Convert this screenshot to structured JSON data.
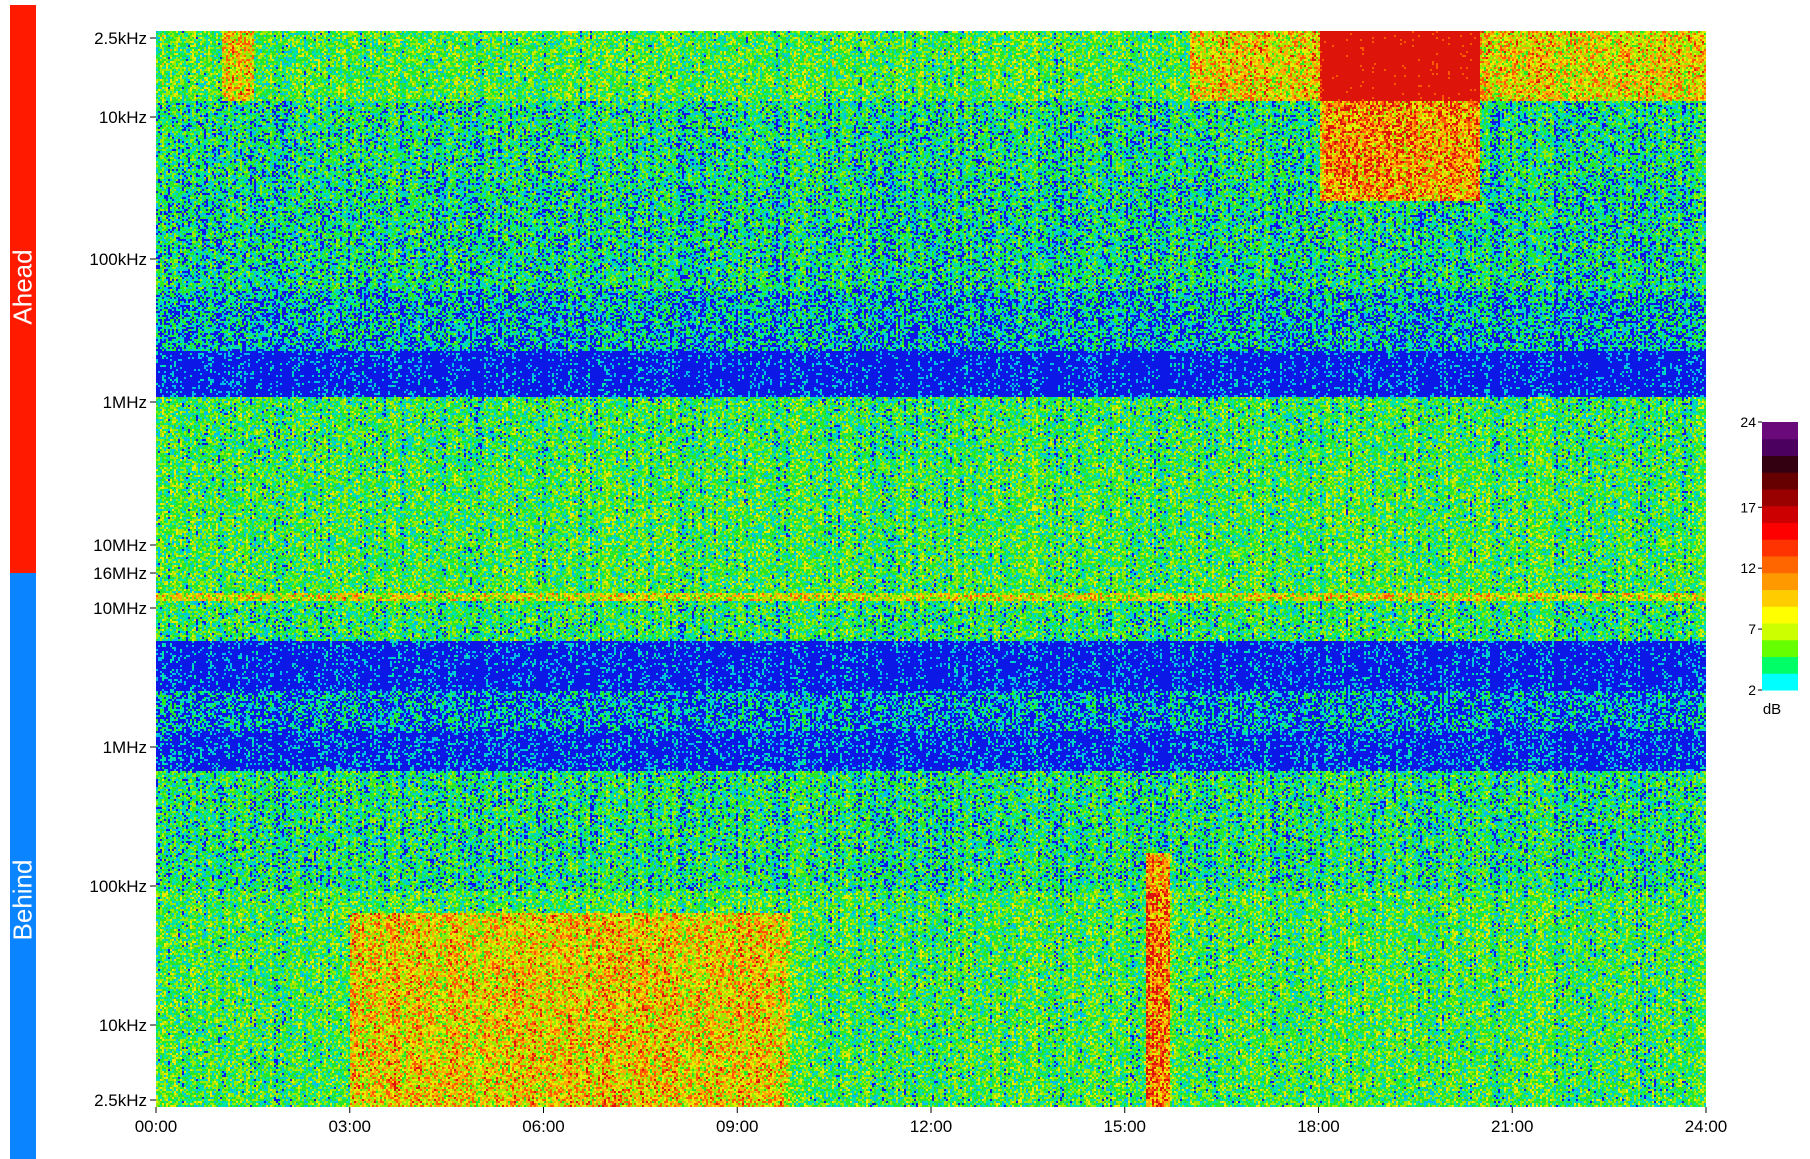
{
  "chart_data": {
    "type": "heatmap",
    "sections": [
      {
        "name": "Ahead",
        "color": "#ff1a00"
      },
      {
        "name": "Behind",
        "color": "#0a84ff"
      }
    ],
    "y_ticks_ahead": [
      "2.5kHz",
      "10kHz",
      "100kHz",
      "1MHz",
      "10MHz",
      "16MHz"
    ],
    "y_ticks_behind": [
      "10MHz",
      "1MHz",
      "100kHz",
      "10kHz",
      "2.5kHz"
    ],
    "x_ticks": [
      "00:00",
      "03:00",
      "06:00",
      "09:00",
      "12:00",
      "15:00",
      "18:00",
      "21:00",
      "24:00"
    ],
    "x_range_hours": [
      0,
      24
    ],
    "colorbar": {
      "ticks": [
        "24",
        "17",
        "12",
        "7",
        "2"
      ],
      "tick_values": [
        24,
        17,
        12,
        7,
        2
      ],
      "range": [
        2,
        24
      ],
      "unit": "dB",
      "colors": [
        "#00ffff",
        "#00ff66",
        "#66ff00",
        "#ccff00",
        "#ffff00",
        "#ffcc00",
        "#ff9900",
        "#ff6600",
        "#ff3300",
        "#ff0000",
        "#cc0000",
        "#990000",
        "#660000",
        "#330011",
        "#4b0060",
        "#6a0a7a"
      ]
    }
  }
}
